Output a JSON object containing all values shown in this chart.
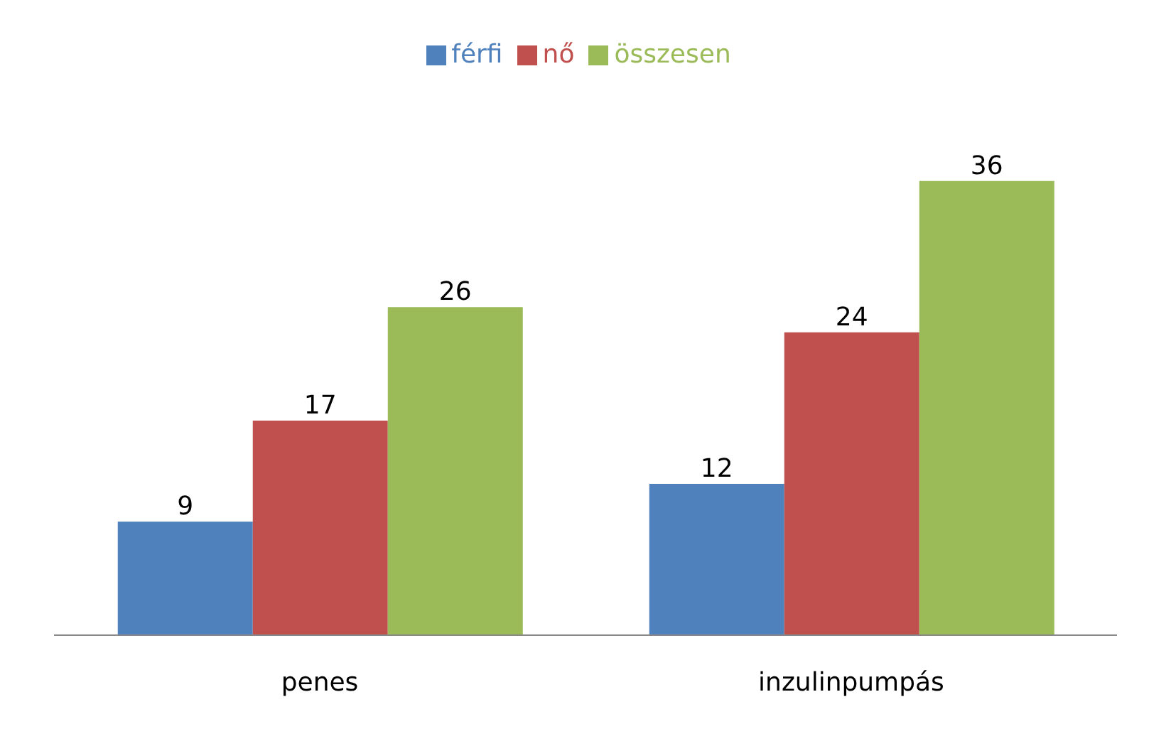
{
  "chart_data": {
    "type": "bar",
    "categories": [
      "penes",
      "inzulinpumpás"
    ],
    "series": [
      {
        "name": "férfi",
        "color": "#4f81bd",
        "values": [
          9,
          12
        ]
      },
      {
        "name": "nő",
        "color": "#c0504d",
        "values": [
          17,
          24
        ]
      },
      {
        "name": "összesen",
        "color": "#9bbb59",
        "values": [
          26,
          36
        ]
      }
    ],
    "data_labels": true,
    "legend": "top",
    "grid": false
  }
}
